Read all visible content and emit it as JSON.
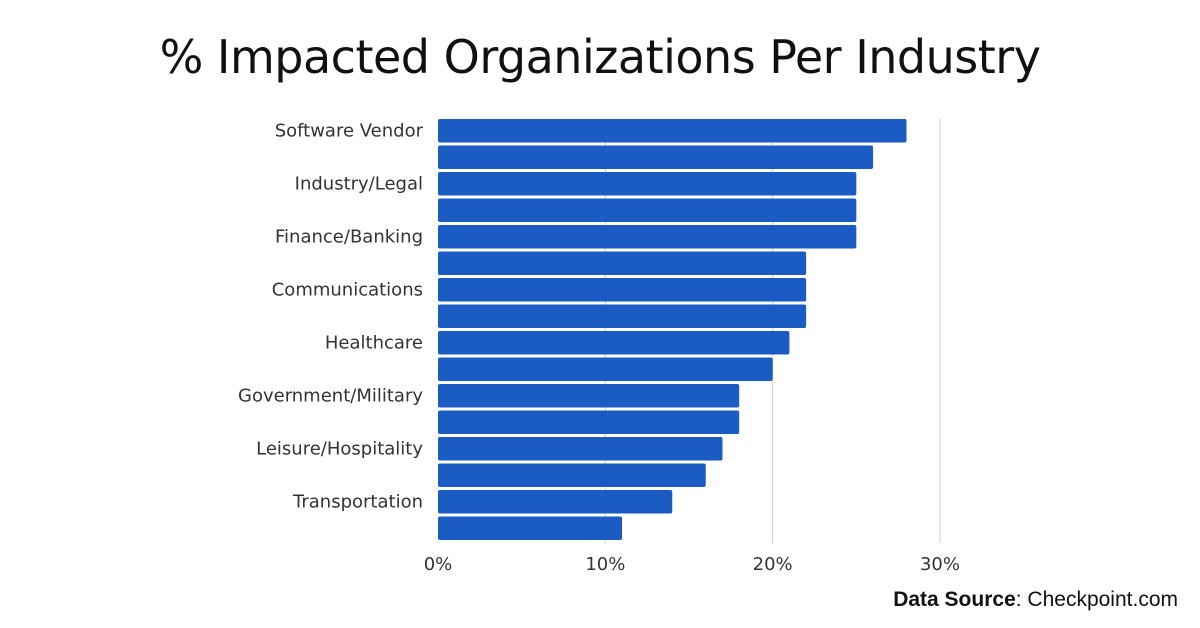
{
  "chart_data": {
    "type": "bar",
    "orientation": "horizontal",
    "title": "% Impacted Organizations Per Industry",
    "categories": [
      "Software Vendor",
      "",
      "Industry/Legal",
      "",
      "Finance/Banking",
      "",
      "Communications",
      "",
      "Healthcare",
      "",
      "Government/Military",
      "",
      "Leisure/Hospitality",
      "",
      "Transportation",
      ""
    ],
    "values": [
      28,
      26,
      25,
      25,
      25,
      22,
      22,
      22,
      21,
      20,
      18,
      18,
      17,
      16,
      14,
      11
    ],
    "x_ticks": [
      "0%",
      "10%",
      "20%",
      "30%"
    ],
    "xlim": [
      0,
      30
    ],
    "xlabel": "",
    "ylabel": "",
    "grid": true,
    "bar_color": "#1a5bc4",
    "gridline_color": "#cccccc"
  },
  "source": {
    "key": "Data Source",
    "separator": ":",
    "value": " Checkpoint.com"
  }
}
